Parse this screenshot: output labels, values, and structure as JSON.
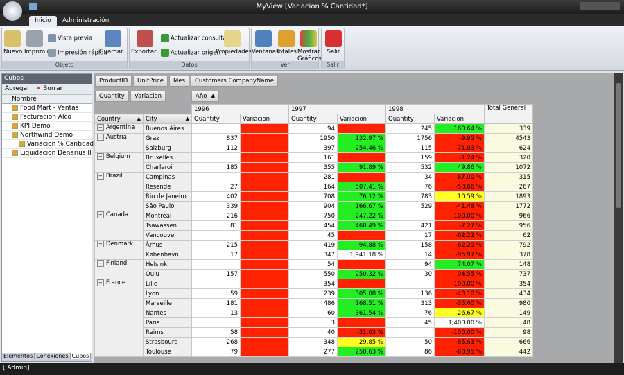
{
  "window": {
    "title": "MyView [Variacion % Cantidad*]"
  },
  "tabs": [
    "Inicio",
    "Administración"
  ],
  "ribbon": {
    "groups": [
      {
        "label": "Objeto",
        "buttons": [
          "Nuevo",
          "Imprimir",
          "Vista previa",
          "Impresión rápida",
          "Guardar..."
        ]
      },
      {
        "label": "Datos",
        "buttons": [
          "Exportar...",
          "Actualizar consulta",
          "Actualizar origen",
          "Propiedades"
        ]
      },
      {
        "label": "Ver",
        "buttons": [
          "Ventanas",
          "Totales",
          "Mostrar Gráficos"
        ]
      },
      {
        "label": "Salir",
        "buttons": [
          "Salir"
        ]
      }
    ]
  },
  "left_panel": {
    "title": "Cubos",
    "actions": [
      "Agregar",
      "Borrar"
    ],
    "column": "Nombre",
    "items": [
      {
        "label": "Food Mart - Ventas"
      },
      {
        "label": "Facturacion Alco"
      },
      {
        "label": "KPI Demo"
      },
      {
        "label": "Northwind Demo",
        "children": [
          {
            "label": "Variacion % Cantidad"
          }
        ]
      },
      {
        "label": "Liquidacion Denarius II"
      }
    ],
    "tabs": [
      "Elementos",
      "Conexiones",
      "Cubos"
    ]
  },
  "pivot": {
    "filter_fields": [
      "ProductID",
      "UnitPrice",
      "Mes",
      "Customers.CompanyName"
    ],
    "data_fields": [
      "Quantity",
      "Variacion"
    ],
    "column_field": "Año",
    "row_fields": [
      "Country",
      "City"
    ],
    "years": [
      "1996",
      "1997",
      "1998"
    ],
    "grand_total": "Total General",
    "measures": [
      "Quantity",
      "Variacion"
    ],
    "rows": [
      {
        "country": "Argentina",
        "city": "Buenos Aires",
        "cells": [
          null,
          null,
          94,
          null,
          245,
          "160.64 %",
          339
        ],
        "fills": [
          "red",
          "red",
          "green"
        ]
      },
      {
        "country": "Austria",
        "city": "Graz",
        "cells": [
          837,
          null,
          1950,
          "132.97 %",
          1756,
          "-9.95 %",
          4543
        ],
        "fills": [
          "red",
          "green",
          "red"
        ]
      },
      {
        "country": null,
        "city": "Salzburg",
        "cells": [
          112,
          null,
          397,
          "254.46 %",
          115,
          "-71.03 %",
          624
        ],
        "fills": [
          "red",
          "green",
          "red"
        ]
      },
      {
        "country": "Belgium",
        "city": "Bruxelles",
        "cells": [
          null,
          null,
          161,
          null,
          159,
          "-1.24 %",
          320
        ],
        "fills": [
          "red",
          "red",
          "red"
        ]
      },
      {
        "country": null,
        "city": "Charleroi",
        "cells": [
          185,
          null,
          355,
          "91.89 %",
          532,
          "49.86 %",
          1072
        ],
        "fills": [
          "red",
          "green",
          "green"
        ]
      },
      {
        "country": "Brazil",
        "city": "Campinas",
        "cells": [
          null,
          null,
          281,
          null,
          34,
          "-87.90 %",
          315
        ],
        "fills": [
          "red",
          "red",
          "red"
        ]
      },
      {
        "country": null,
        "city": "Resende",
        "cells": [
          27,
          null,
          164,
          "507.41 %",
          76,
          "-53.66 %",
          267
        ],
        "fills": [
          "red",
          "green",
          "red"
        ]
      },
      {
        "country": null,
        "city": "Rio de Janeiro",
        "cells": [
          402,
          null,
          708,
          "76.12 %",
          783,
          "10.59 %",
          1893
        ],
        "fills": [
          "red",
          "green",
          "yellow"
        ]
      },
      {
        "country": null,
        "city": "São Paulo",
        "cells": [
          339,
          null,
          904,
          "166.67 %",
          529,
          "-41.48 %",
          1772
        ],
        "fills": [
          "red",
          "green",
          "red"
        ]
      },
      {
        "country": "Canada",
        "city": "Montréal",
        "cells": [
          216,
          null,
          750,
          "247.22 %",
          null,
          "-100.00 %",
          966
        ],
        "fills": [
          "red",
          "green",
          "red"
        ]
      },
      {
        "country": null,
        "city": "Tsawassen",
        "cells": [
          81,
          null,
          454,
          "460.49 %",
          421,
          "-7.27 %",
          956
        ],
        "fills": [
          "red",
          "green",
          "red"
        ]
      },
      {
        "country": null,
        "city": "Vancouver",
        "cells": [
          null,
          null,
          45,
          null,
          17,
          "-62.22 %",
          62
        ],
        "fills": [
          "red",
          "red",
          "red"
        ]
      },
      {
        "country": "Denmark",
        "city": "Århus",
        "cells": [
          215,
          null,
          419,
          "94.88 %",
          158,
          "-62.29 %",
          792
        ],
        "fills": [
          "red",
          "green",
          "red"
        ]
      },
      {
        "country": null,
        "city": "København",
        "cells": [
          17,
          null,
          347,
          "1,941.18 %",
          14,
          "-95.97 %",
          378
        ],
        "fills": [
          "red",
          "white",
          "red"
        ]
      },
      {
        "country": "Finland",
        "city": "Helsinki",
        "cells": [
          null,
          null,
          54,
          null,
          94,
          "74.07 %",
          148
        ],
        "fills": [
          "red",
          "red",
          "green"
        ]
      },
      {
        "country": null,
        "city": "Oulu",
        "cells": [
          157,
          null,
          550,
          "250.32 %",
          30,
          "-94.55 %",
          737
        ],
        "fills": [
          "red",
          "green",
          "red"
        ]
      },
      {
        "country": "France",
        "city": "Lille",
        "cells": [
          null,
          null,
          354,
          null,
          null,
          "-100.00 %",
          354
        ],
        "fills": [
          "red",
          "red",
          "red"
        ]
      },
      {
        "country": null,
        "city": "Lyon",
        "cells": [
          59,
          null,
          239,
          "305.08 %",
          136,
          "-43.10 %",
          434
        ],
        "fills": [
          "red",
          "green",
          "red"
        ]
      },
      {
        "country": null,
        "city": "Marseille",
        "cells": [
          181,
          null,
          486,
          "168.51 %",
          313,
          "-35.60 %",
          980
        ],
        "fills": [
          "red",
          "green",
          "red"
        ]
      },
      {
        "country": null,
        "city": "Nantes",
        "cells": [
          13,
          null,
          60,
          "361.54 %",
          76,
          "26.67 %",
          149
        ],
        "fills": [
          "red",
          "green",
          "yellow"
        ]
      },
      {
        "country": null,
        "city": "Paris",
        "cells": [
          null,
          null,
          3,
          null,
          45,
          "1,400.00 %",
          48
        ],
        "fills": [
          "red",
          "red",
          "white"
        ]
      },
      {
        "country": null,
        "city": "Reims",
        "cells": [
          58,
          null,
          40,
          "-31.03 %",
          null,
          "-100.00 %",
          98
        ],
        "fills": [
          "red",
          "red",
          "red"
        ]
      },
      {
        "country": null,
        "city": "Strasbourg",
        "cells": [
          268,
          null,
          348,
          "29.85 %",
          50,
          "-85.63 %",
          666
        ],
        "fills": [
          "red",
          "yellow",
          "red"
        ]
      },
      {
        "country": null,
        "city": "Toulouse",
        "cells": [
          79,
          null,
          277,
          "250.63 %",
          86,
          "-68.95 %",
          442
        ],
        "fills": [
          "red",
          "green",
          "red"
        ]
      }
    ]
  },
  "status": {
    "user": "[ Admin]"
  }
}
